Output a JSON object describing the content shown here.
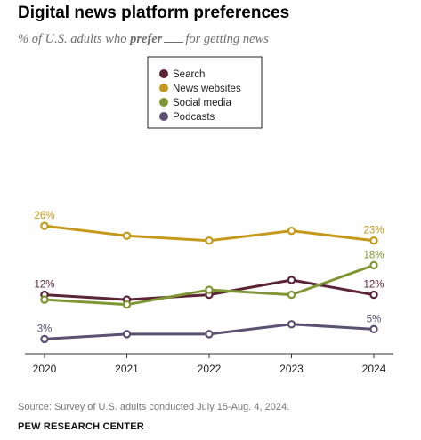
{
  "title": "Digital news platform preferences",
  "subtitle": {
    "prefix": "% of U.S. adults who",
    "emphasis": "prefer",
    "suffix": "for getting news"
  },
  "source": "Source: Survey of U.S. adults conducted July 15-Aug. 4, 2024.",
  "organization": "PEW RESEARCH CENTER",
  "chart_data": {
    "type": "line",
    "x": [
      "2020",
      "2021",
      "2022",
      "2023",
      "2024"
    ],
    "ylim": [
      0,
      30
    ],
    "grid": false,
    "legend_position": "top-center",
    "series": [
      {
        "name": "Search",
        "color": "#5c2536",
        "values": [
          12,
          11,
          12,
          15,
          12
        ],
        "labels": [
          {
            "index": 0,
            "text": "12%"
          },
          {
            "index": 4,
            "text": "12%"
          }
        ]
      },
      {
        "name": "News websites",
        "color": "#c59a1c",
        "values": [
          26,
          24,
          23,
          25,
          23
        ],
        "labels": [
          {
            "index": 0,
            "text": "26%"
          },
          {
            "index": 4,
            "text": "23%"
          }
        ]
      },
      {
        "name": "Social media",
        "color": "#7f9634",
        "values": [
          11,
          10,
          13,
          12,
          18
        ],
        "labels": [
          {
            "index": 4,
            "text": "18%"
          }
        ]
      },
      {
        "name": "Podcasts",
        "color": "#5b5273",
        "values": [
          3,
          4,
          4,
          6,
          5
        ],
        "labels": [
          {
            "index": 0,
            "text": "3%"
          },
          {
            "index": 4,
            "text": "5%"
          }
        ]
      }
    ]
  }
}
